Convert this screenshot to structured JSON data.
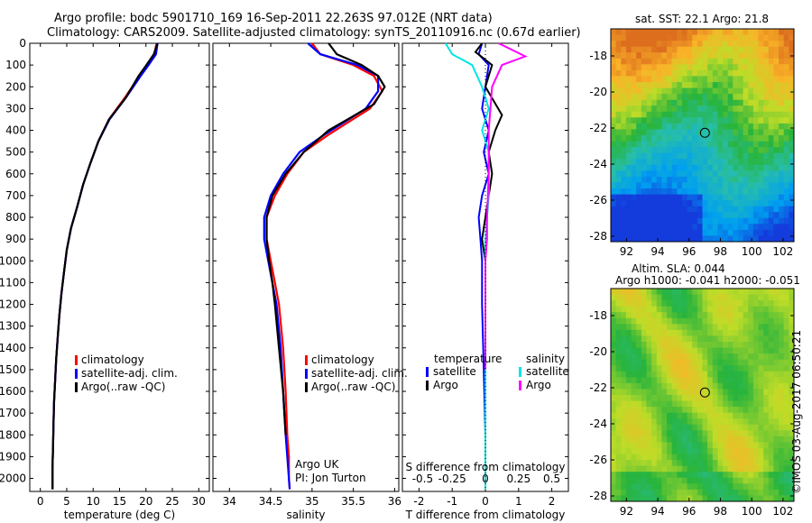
{
  "title": {
    "line1": "Argo profile: bodc 5901710_169 16-Sep-2011 22.263S 97.012E (NRT data)",
    "line2": "Climatology: CARS2009. Satellite-adjusted climatology: synTS_20110916.nc (0.67d earlier)"
  },
  "colors": {
    "climatology": "#ff0000",
    "satellite": "#0000ff",
    "argo": "#000000",
    "sat_salinity": "#00e5e5",
    "argo_salinity": "#ff00ff"
  },
  "depth_ticks": [
    0,
    100,
    200,
    300,
    400,
    500,
    600,
    700,
    800,
    900,
    1000,
    1100,
    1200,
    1300,
    1400,
    1500,
    1600,
    1700,
    1800,
    1900,
    2000
  ],
  "chart_data": [
    {
      "type": "line",
      "id": "temperature",
      "xlabel": "temperature (deg C)",
      "xlim": [
        -2,
        32
      ],
      "ylim": [
        2060,
        0
      ],
      "xticks": [
        0,
        5,
        10,
        15,
        20,
        25,
        30
      ],
      "legend": [
        "climatology",
        "satellite-adj. clim.",
        "Argo(..raw -QC)"
      ],
      "legend_position": "bottom-right",
      "series": [
        {
          "name": "climatology",
          "x": [
            22.0,
            21.6,
            20.3,
            18.8,
            16.0,
            13.0,
            11.0,
            9.5,
            8.1,
            7.0,
            5.8,
            5.0,
            4.5,
            4.0,
            3.6,
            3.3,
            3.0,
            2.8,
            2.6,
            2.5,
            2.4,
            2.3,
            2.3
          ],
          "y": [
            0,
            50,
            100,
            150,
            250,
            350,
            450,
            550,
            650,
            750,
            850,
            950,
            1050,
            1150,
            1250,
            1350,
            1450,
            1550,
            1650,
            1750,
            1850,
            1950,
            2050
          ]
        },
        {
          "name": "satellite-adj. clim.",
          "x": [
            22.2,
            21.9,
            20.5,
            19.0,
            16.2,
            13.1,
            11.0,
            9.5,
            8.1,
            7.0,
            5.8,
            5.0,
            4.5,
            4.0,
            3.6,
            3.3,
            3.0,
            2.8,
            2.6,
            2.5,
            2.4,
            2.3,
            2.3
          ],
          "y": [
            0,
            50,
            100,
            150,
            250,
            350,
            450,
            550,
            650,
            750,
            850,
            950,
            1050,
            1150,
            1250,
            1350,
            1450,
            1550,
            1650,
            1750,
            1850,
            1950,
            2050
          ]
        },
        {
          "name": "Argo(..raw -QC)",
          "x": [
            22.2,
            21.5,
            20.1,
            18.6,
            16.2,
            13.0,
            11.0,
            9.5,
            8.1,
            7.0,
            5.8,
            5.0,
            4.5,
            4.0,
            3.6,
            3.3,
            3.0,
            2.8,
            2.6,
            2.5,
            2.4,
            2.3,
            2.3
          ],
          "y": [
            0,
            50,
            100,
            150,
            250,
            350,
            450,
            550,
            650,
            750,
            850,
            950,
            1050,
            1150,
            1250,
            1350,
            1450,
            1550,
            1650,
            1750,
            1850,
            1950,
            2050
          ]
        }
      ]
    },
    {
      "type": "line",
      "id": "salinity",
      "xlabel": "salinity",
      "xlim": [
        33.8,
        36.05
      ],
      "ylim": [
        2060,
        0
      ],
      "xticks": [
        34,
        34.5,
        35,
        35.5,
        36
      ],
      "legend": [
        "climatology",
        "satellite-adj. clim.",
        "Argo(..raw -QC)"
      ],
      "legend_position": "bottom-right",
      "annotation": [
        "Argo UK",
        "PI: Jon Turton"
      ],
      "series": [
        {
          "name": "climatology",
          "x": [
            35.0,
            35.1,
            35.5,
            35.75,
            35.85,
            35.7,
            35.2,
            34.9,
            34.7,
            34.55,
            34.45,
            34.45,
            34.5,
            34.55,
            34.6,
            34.65,
            34.68,
            34.7,
            34.72,
            34.72,
            34.73
          ],
          "y": [
            0,
            50,
            100,
            150,
            220,
            300,
            420,
            500,
            600,
            700,
            800,
            900,
            1000,
            1100,
            1200,
            1400,
            1600,
            1800,
            1900,
            2000,
            2050
          ]
        },
        {
          "name": "satellite-adj. clim.",
          "x": [
            34.95,
            35.1,
            35.55,
            35.8,
            35.8,
            35.65,
            35.15,
            34.85,
            34.65,
            34.5,
            34.42,
            34.42,
            34.47,
            34.52,
            34.57,
            34.62,
            34.65,
            34.68,
            34.7,
            34.72,
            34.73
          ],
          "y": [
            0,
            50,
            100,
            150,
            220,
            300,
            420,
            500,
            600,
            700,
            800,
            900,
            1000,
            1100,
            1200,
            1400,
            1600,
            1800,
            1900,
            2000,
            2050
          ]
        },
        {
          "name": "Argo(..raw -QC)",
          "x": [
            35.2,
            35.3,
            35.6,
            35.8,
            35.88,
            35.75,
            35.2,
            34.9,
            34.68,
            34.52,
            34.45,
            34.45,
            34.48,
            34.52,
            34.55,
            34.6,
            34.65,
            34.68
          ],
          "y": [
            0,
            50,
            100,
            150,
            200,
            280,
            400,
            500,
            600,
            700,
            800,
            900,
            1000,
            1100,
            1200,
            1400,
            1600,
            1800
          ]
        }
      ]
    },
    {
      "type": "line",
      "id": "differences",
      "xlabel": "T difference from climatology",
      "xlim": [
        -2.5,
        2.5
      ],
      "ylim": [
        2060,
        0
      ],
      "xticks": [
        -2,
        -1,
        0,
        1,
        2
      ],
      "top_xlabel": "S difference from climatology",
      "top_xticks": [
        "-0.5",
        "-0.25",
        "0",
        "0.25",
        "0.5"
      ],
      "legend_headers": [
        "temperature",
        "salinity"
      ],
      "legend": [
        "satellite",
        "Argo",
        "satellite",
        "Argo"
      ],
      "legend_position": "bottom",
      "series": [
        {
          "name": "satellite",
          "group": "temperature",
          "x": [
            -0.1,
            -0.2,
            0.1,
            0.0,
            -0.1,
            0.1,
            -0.05,
            0.1,
            -0.1,
            -0.2,
            -0.15,
            -0.1,
            -0.1,
            -0.05,
            0,
            0
          ],
          "y": [
            0,
            50,
            100,
            200,
            300,
            400,
            500,
            600,
            700,
            800,
            900,
            1000,
            1200,
            1500,
            1800,
            2000
          ]
        },
        {
          "name": "Argo",
          "group": "temperature",
          "x": [
            -0.1,
            -0.3,
            0.2,
            0.0,
            0.5,
            0.3,
            0.1,
            0.2,
            0.1,
            0.0,
            -0.1,
            0,
            0,
            0
          ],
          "y": [
            0,
            40,
            100,
            200,
            330,
            400,
            500,
            600,
            700,
            800,
            900,
            1000,
            1200,
            1500
          ]
        },
        {
          "name": "satellite",
          "group": "salinity",
          "x": [
            -1.2,
            -1.0,
            -0.4,
            -0.1,
            0.1,
            -0.1,
            0.1,
            0.1,
            0,
            0,
            0,
            0,
            0,
            0
          ],
          "y": [
            0,
            50,
            100,
            200,
            300,
            400,
            500,
            700,
            900,
            1100,
            1400,
            1700,
            1900,
            2050
          ]
        },
        {
          "name": "Argo",
          "group": "salinity",
          "x": [
            0.4,
            1.2,
            0.5,
            0.2,
            0.1,
            0.1,
            0.1,
            0.05,
            0.05,
            0,
            0,
            0
          ],
          "y": [
            0,
            60,
            100,
            200,
            400,
            500,
            600,
            800,
            900,
            1000,
            1100,
            1500
          ]
        }
      ]
    },
    {
      "type": "heatmap",
      "id": "sst_map",
      "title": "sat. SST: 22.1  Argo: 21.8",
      "xticks": [
        92,
        94,
        96,
        98,
        100,
        102
      ],
      "yticks": [
        -18,
        -20,
        -22,
        -24,
        -26,
        -28
      ],
      "xlim": [
        91.0,
        102.7
      ],
      "ylim": [
        -28.3,
        -16.5
      ],
      "marker": {
        "lon": 97.012,
        "lat": -22.263
      }
    },
    {
      "type": "heatmap",
      "id": "sla_map",
      "title": [
        "Altim. SLA: 0.044",
        "Argo h1000: -0.041 h2000: -0.051"
      ],
      "xticks": [
        92,
        94,
        96,
        98,
        100,
        102
      ],
      "yticks": [
        -18,
        -20,
        -22,
        -24,
        -26,
        -28
      ],
      "xlim": [
        91.0,
        102.7
      ],
      "ylim": [
        -28.3,
        -16.5
      ],
      "marker": {
        "lon": 97.012,
        "lat": -22.263
      }
    }
  ],
  "credit": "©IMOS 03-Aug-2017 06:50:21"
}
